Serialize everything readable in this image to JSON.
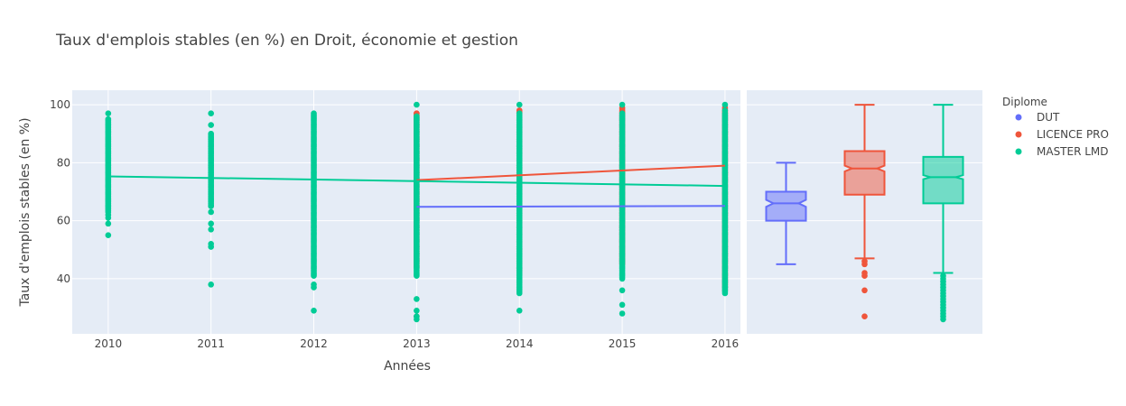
{
  "chart_data": {
    "type": "scatter",
    "title": "Taux d'emplois stables (en %) en Droit, économie et gestion",
    "xlabel": "Années",
    "ylabel": "Taux d'emplois stables (en %)",
    "x_ticks": [
      "2010",
      "2011",
      "2012",
      "2013",
      "2014",
      "2015",
      "2016"
    ],
    "y_ticks": [
      "40",
      "60",
      "80",
      "100"
    ],
    "xlim": [
      2009.65,
      2016.15
    ],
    "ylim": [
      21,
      105
    ],
    "grid": true,
    "legend": {
      "title": "Diplome",
      "placement": "right"
    },
    "series": [
      {
        "name": "DUT",
        "color": "#636efa",
        "trend": {
          "x": [
            2013,
            2016
          ],
          "y": [
            64.8,
            65.1
          ]
        },
        "points": [],
        "box": {
          "min": 45,
          "q1": 60,
          "median": 66,
          "q3": 70,
          "max": 80,
          "notch_low": 64.8,
          "notch_high": 67.2,
          "outliers": []
        }
      },
      {
        "name": "LICENCE PRO",
        "color": "#ef553b",
        "trend": {
          "x": [
            2013,
            2016
          ],
          "y": [
            74,
            79
          ]
        },
        "points": [
          {
            "x": 2013,
            "ymin": 44,
            "ymax": 97,
            "outliers": [
              27,
              97
            ]
          },
          {
            "x": 2014,
            "ymin": 42,
            "ymax": 98,
            "outliers": [
              98,
              97
            ]
          },
          {
            "x": 2015,
            "ymin": 45,
            "ymax": 99,
            "outliers": []
          },
          {
            "x": 2016,
            "ymin": 37,
            "ymax": 99,
            "outliers": [
              36
            ]
          }
        ],
        "box": {
          "min": 47,
          "q1": 69,
          "median": 78,
          "q3": 84,
          "max": 100,
          "notch_low": 77,
          "notch_high": 79,
          "outliers": [
            46,
            45,
            42,
            41,
            36,
            27
          ]
        }
      },
      {
        "name": "MASTER LMD",
        "color": "#00cc96",
        "trend": {
          "x": [
            2010,
            2016
          ],
          "y": [
            75.3,
            72
          ]
        },
        "points": [
          {
            "x": 2010,
            "ymin": 63,
            "ymax": 95,
            "outliers": [
              97,
              62,
              61,
              59,
              55
            ]
          },
          {
            "x": 2011,
            "ymin": 65,
            "ymax": 90,
            "outliers": [
              97,
              93,
              63,
              59,
              57,
              52,
              51,
              38
            ]
          },
          {
            "x": 2012,
            "ymin": 41,
            "ymax": 97,
            "outliers": [
              38,
              37,
              29
            ]
          },
          {
            "x": 2013,
            "ymin": 41,
            "ymax": 96,
            "outliers": [
              100,
              33,
              29,
              27,
              26
            ]
          },
          {
            "x": 2014,
            "ymin": 35,
            "ymax": 97,
            "outliers": [
              100,
              29
            ]
          },
          {
            "x": 2015,
            "ymin": 40,
            "ymax": 97,
            "outliers": [
              100,
              36,
              31,
              28
            ]
          },
          {
            "x": 2016,
            "ymin": 35,
            "ymax": 97,
            "outliers": [
              100,
              98
            ]
          }
        ],
        "box": {
          "min": 42,
          "q1": 66,
          "median": 75,
          "q3": 82,
          "max": 100,
          "notch_low": 74.3,
          "notch_high": 75.7,
          "outliers": [
            41,
            40,
            39,
            38,
            37,
            36,
            35,
            34,
            33,
            32,
            31,
            30,
            29,
            28,
            27,
            26
          ]
        }
      }
    ]
  }
}
